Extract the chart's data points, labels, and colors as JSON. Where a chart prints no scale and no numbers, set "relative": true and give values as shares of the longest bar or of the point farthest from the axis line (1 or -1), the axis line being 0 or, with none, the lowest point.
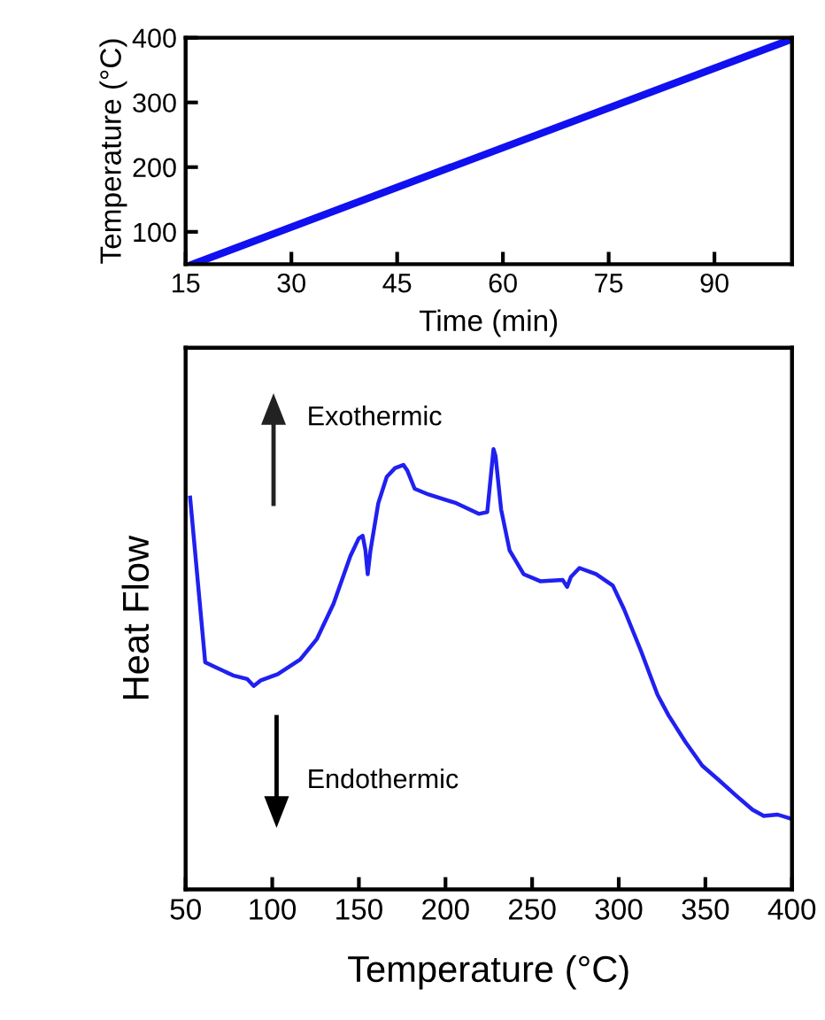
{
  "chart_data": [
    {
      "type": "line",
      "xlabel": "Time (min)",
      "ylabel": "Temperature (°C)",
      "xlim": [
        15,
        101
      ],
      "xticks": [
        15,
        30,
        45,
        60,
        75,
        90
      ],
      "ylim": [
        50,
        400
      ],
      "yticks": [
        100,
        200,
        300,
        400
      ],
      "grid": false,
      "series": [
        {
          "color": "#1010f0",
          "x": [
            16,
            101
          ],
          "values": [
            50,
            398
          ]
        }
      ]
    },
    {
      "type": "line",
      "relative": true,
      "xlabel": "Temperature (°C)",
      "ylabel": "Heat Flow",
      "xlim": [
        50,
        400
      ],
      "xticks": [
        50,
        100,
        150,
        200,
        250,
        300,
        350,
        400
      ],
      "grid": false,
      "annotations": [
        "Exothermic",
        "Endothermic"
      ],
      "series": [
        {
          "color": "#2020f0",
          "x": [
            52.6,
            61.3,
            66.1,
            77.4,
            85.5,
            89.3,
            93.5,
            103.2,
            116.1,
            125.8,
            135.4,
            145.1,
            149.9,
            152.2,
            153.8,
            155.1,
            156.7,
            161.2,
            166.1,
            170.9,
            175.7,
            178.0,
            182.2,
            190.2,
            206.4,
            219.2,
            224.1,
            226.3,
            227.7,
            228.9,
            232.1,
            237.0,
            245.1,
            254.7,
            267.6,
            270.2,
            272.4,
            277.3,
            286.9,
            296.6,
            303.1,
            312.8,
            319.2,
            322.4,
            328.8,
            338.5,
            348.2,
            357.9,
            367.5,
            377.2,
            383.7,
            391.7,
            399.1
          ],
          "values": [
            0.89,
            0.516,
            0.507,
            0.486,
            0.478,
            0.462,
            0.475,
            0.489,
            0.522,
            0.569,
            0.649,
            0.757,
            0.797,
            0.803,
            0.77,
            0.716,
            0.77,
            0.877,
            0.937,
            0.957,
            0.964,
            0.951,
            0.91,
            0.897,
            0.877,
            0.853,
            0.857,
            0.944,
            1.0,
            0.984,
            0.863,
            0.77,
            0.716,
            0.7,
            0.703,
            0.687,
            0.71,
            0.73,
            0.716,
            0.69,
            0.636,
            0.542,
            0.475,
            0.442,
            0.395,
            0.335,
            0.281,
            0.248,
            0.214,
            0.181,
            0.167,
            0.17,
            0.161
          ]
        }
      ]
    }
  ]
}
